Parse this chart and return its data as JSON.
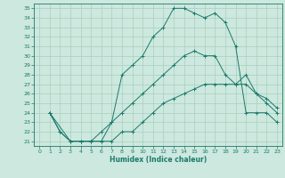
{
  "title": "",
  "xlabel": "Humidex (Indice chaleur)",
  "bg_color": "#cde8de",
  "grid_color": "#a8cfc0",
  "line_color": "#1a7a6a",
  "xlim": [
    -0.5,
    23.5
  ],
  "ylim": [
    20.5,
    35.5
  ],
  "xticks": [
    0,
    1,
    2,
    3,
    4,
    5,
    6,
    7,
    8,
    9,
    10,
    11,
    12,
    13,
    14,
    15,
    16,
    17,
    18,
    19,
    20,
    21,
    22,
    23
  ],
  "yticks": [
    21,
    22,
    23,
    24,
    25,
    26,
    27,
    28,
    29,
    30,
    31,
    32,
    33,
    34,
    35
  ],
  "line1_x": [
    1,
    2,
    3,
    4,
    5,
    6,
    7,
    8,
    9,
    10,
    11,
    12,
    13,
    14,
    15,
    16,
    17,
    18,
    19,
    20,
    21,
    22,
    23
  ],
  "line1_y": [
    24,
    22,
    21,
    21,
    21,
    22,
    23,
    28,
    29,
    30,
    32,
    33,
    35,
    35,
    34.5,
    34,
    34.5,
    33.5,
    31,
    24,
    24,
    24,
    23
  ],
  "line2_x": [
    1,
    2,
    3,
    4,
    5,
    6,
    7,
    8,
    9,
    10,
    11,
    12,
    13,
    14,
    15,
    16,
    17,
    18,
    19,
    20,
    21,
    22,
    23
  ],
  "line2_y": [
    24,
    22,
    21,
    21,
    21,
    21,
    23,
    24,
    25,
    26,
    27,
    28,
    29,
    30,
    30.5,
    30,
    30,
    28,
    27,
    28,
    26,
    25,
    24
  ],
  "line3_x": [
    1,
    3,
    4,
    5,
    6,
    7,
    8,
    9,
    10,
    11,
    12,
    13,
    14,
    15,
    16,
    17,
    18,
    19,
    20,
    21,
    22,
    23
  ],
  "line3_y": [
    24,
    21,
    21,
    21,
    21,
    21,
    22,
    22,
    23,
    24,
    25,
    25.5,
    26,
    26.5,
    27,
    27,
    27,
    27,
    27,
    26,
    25.5,
    24.5
  ]
}
